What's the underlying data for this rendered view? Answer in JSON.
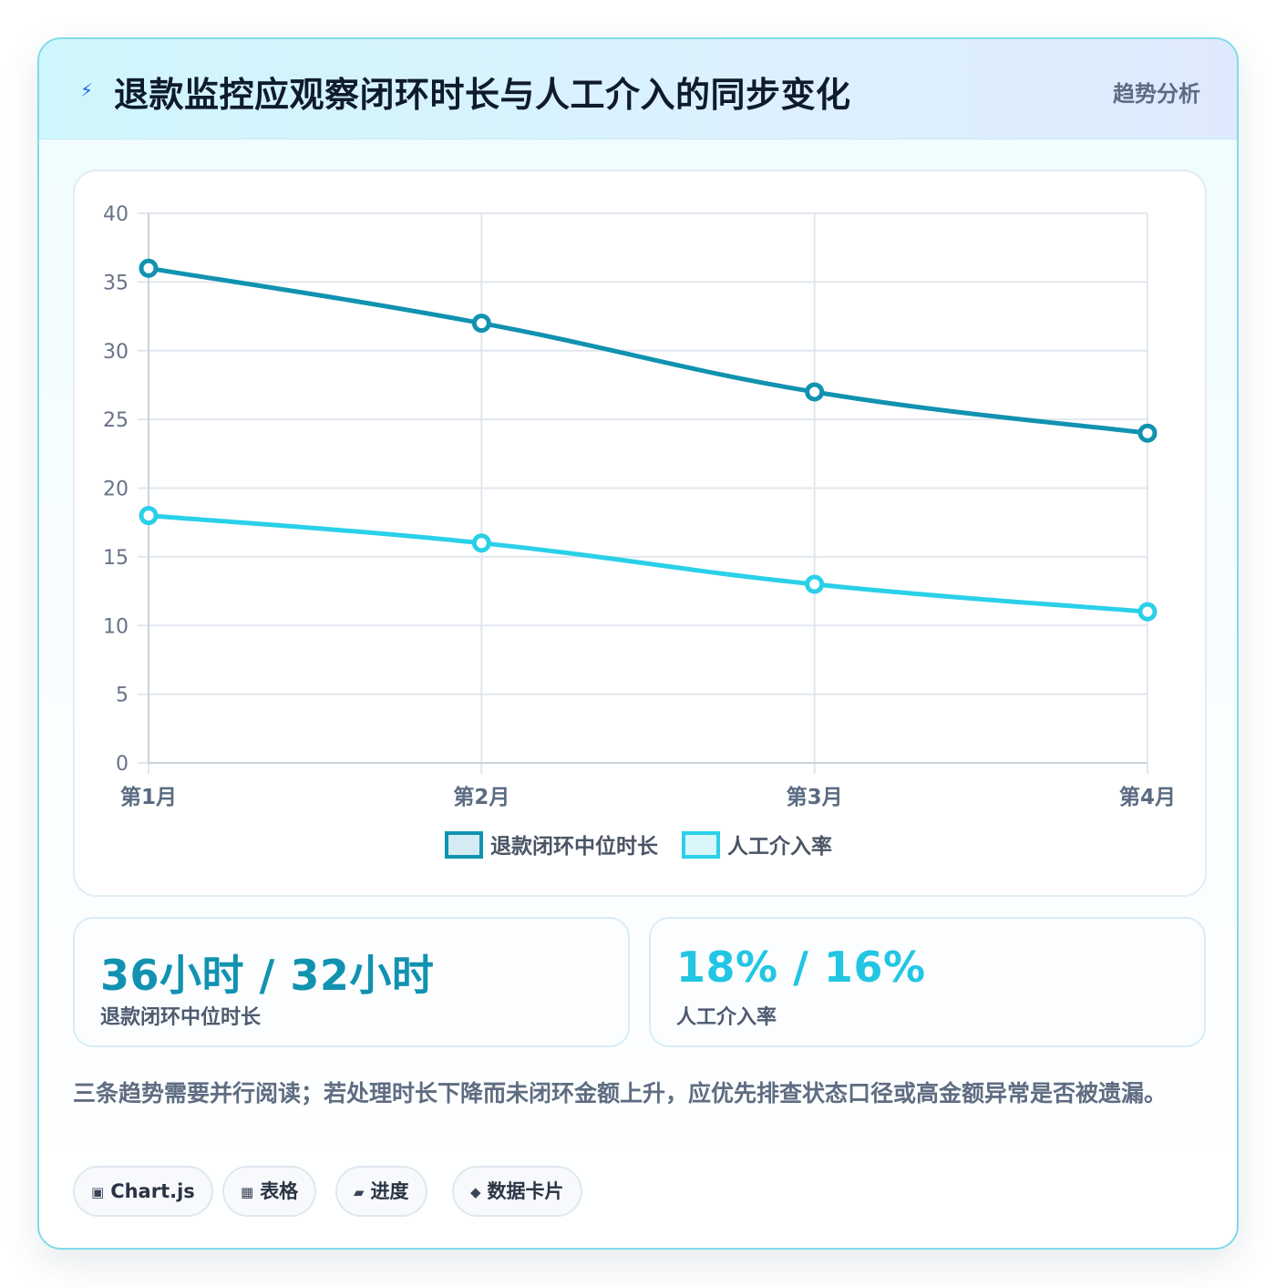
{
  "header": {
    "title": "退款监控应观察闭环时长与人工介入的同步变化",
    "tag": "趋势分析",
    "icon": "lightning-icon"
  },
  "chart_data": {
    "type": "line",
    "categories": [
      "第1月",
      "第2月",
      "第3月",
      "第4月"
    ],
    "series": [
      {
        "name": "退款闭环中位时长",
        "values": [
          36,
          32,
          27,
          24
        ],
        "color": "#1192b0"
      },
      {
        "name": "人工介入率",
        "values": [
          18,
          16,
          13,
          11
        ],
        "color": "#2ad0e8"
      }
    ],
    "ylim": [
      0,
      40
    ],
    "yticks": [
      0,
      5,
      10,
      15,
      20,
      25,
      30,
      35,
      40
    ],
    "grid": true,
    "legend": "bottom"
  },
  "stats": [
    {
      "value": "36小时 / 32小时",
      "label": "退款闭环中位时长",
      "color": "#1192b0"
    },
    {
      "value": "18% / 16%",
      "label": "人工介入率",
      "color": "#22c6e2"
    }
  ],
  "note": "三条趋势需要并行阅读；若处理时长下降而未闭环金额上升，应优先排查状态口径或高金额异常是否被遗漏。",
  "chips": [
    {
      "icon": "▣",
      "label": "Chart.js"
    },
    {
      "icon": "▦",
      "label": "表格"
    },
    {
      "icon": "▰",
      "label": "进度"
    },
    {
      "icon": "◆",
      "label": "数据卡片"
    }
  ]
}
